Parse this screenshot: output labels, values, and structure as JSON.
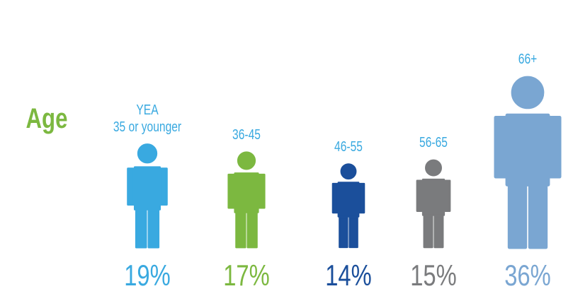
{
  "chart_data": {
    "type": "pictogram",
    "label": "Age",
    "categories": [
      "YEA\n35 or younger",
      "36-45",
      "46-55",
      "56-65",
      "66+"
    ],
    "values": [
      19,
      17,
      14,
      15,
      36
    ],
    "value_labels": [
      "19%",
      "17%",
      "14%",
      "15%",
      "36%"
    ],
    "colors": [
      "#39a9e0",
      "#7cb840",
      "#1b4f9b",
      "#7a7b7d",
      "#7aa6d2"
    ],
    "label_color": "#7cb840",
    "category_color": "#39a9e0"
  }
}
